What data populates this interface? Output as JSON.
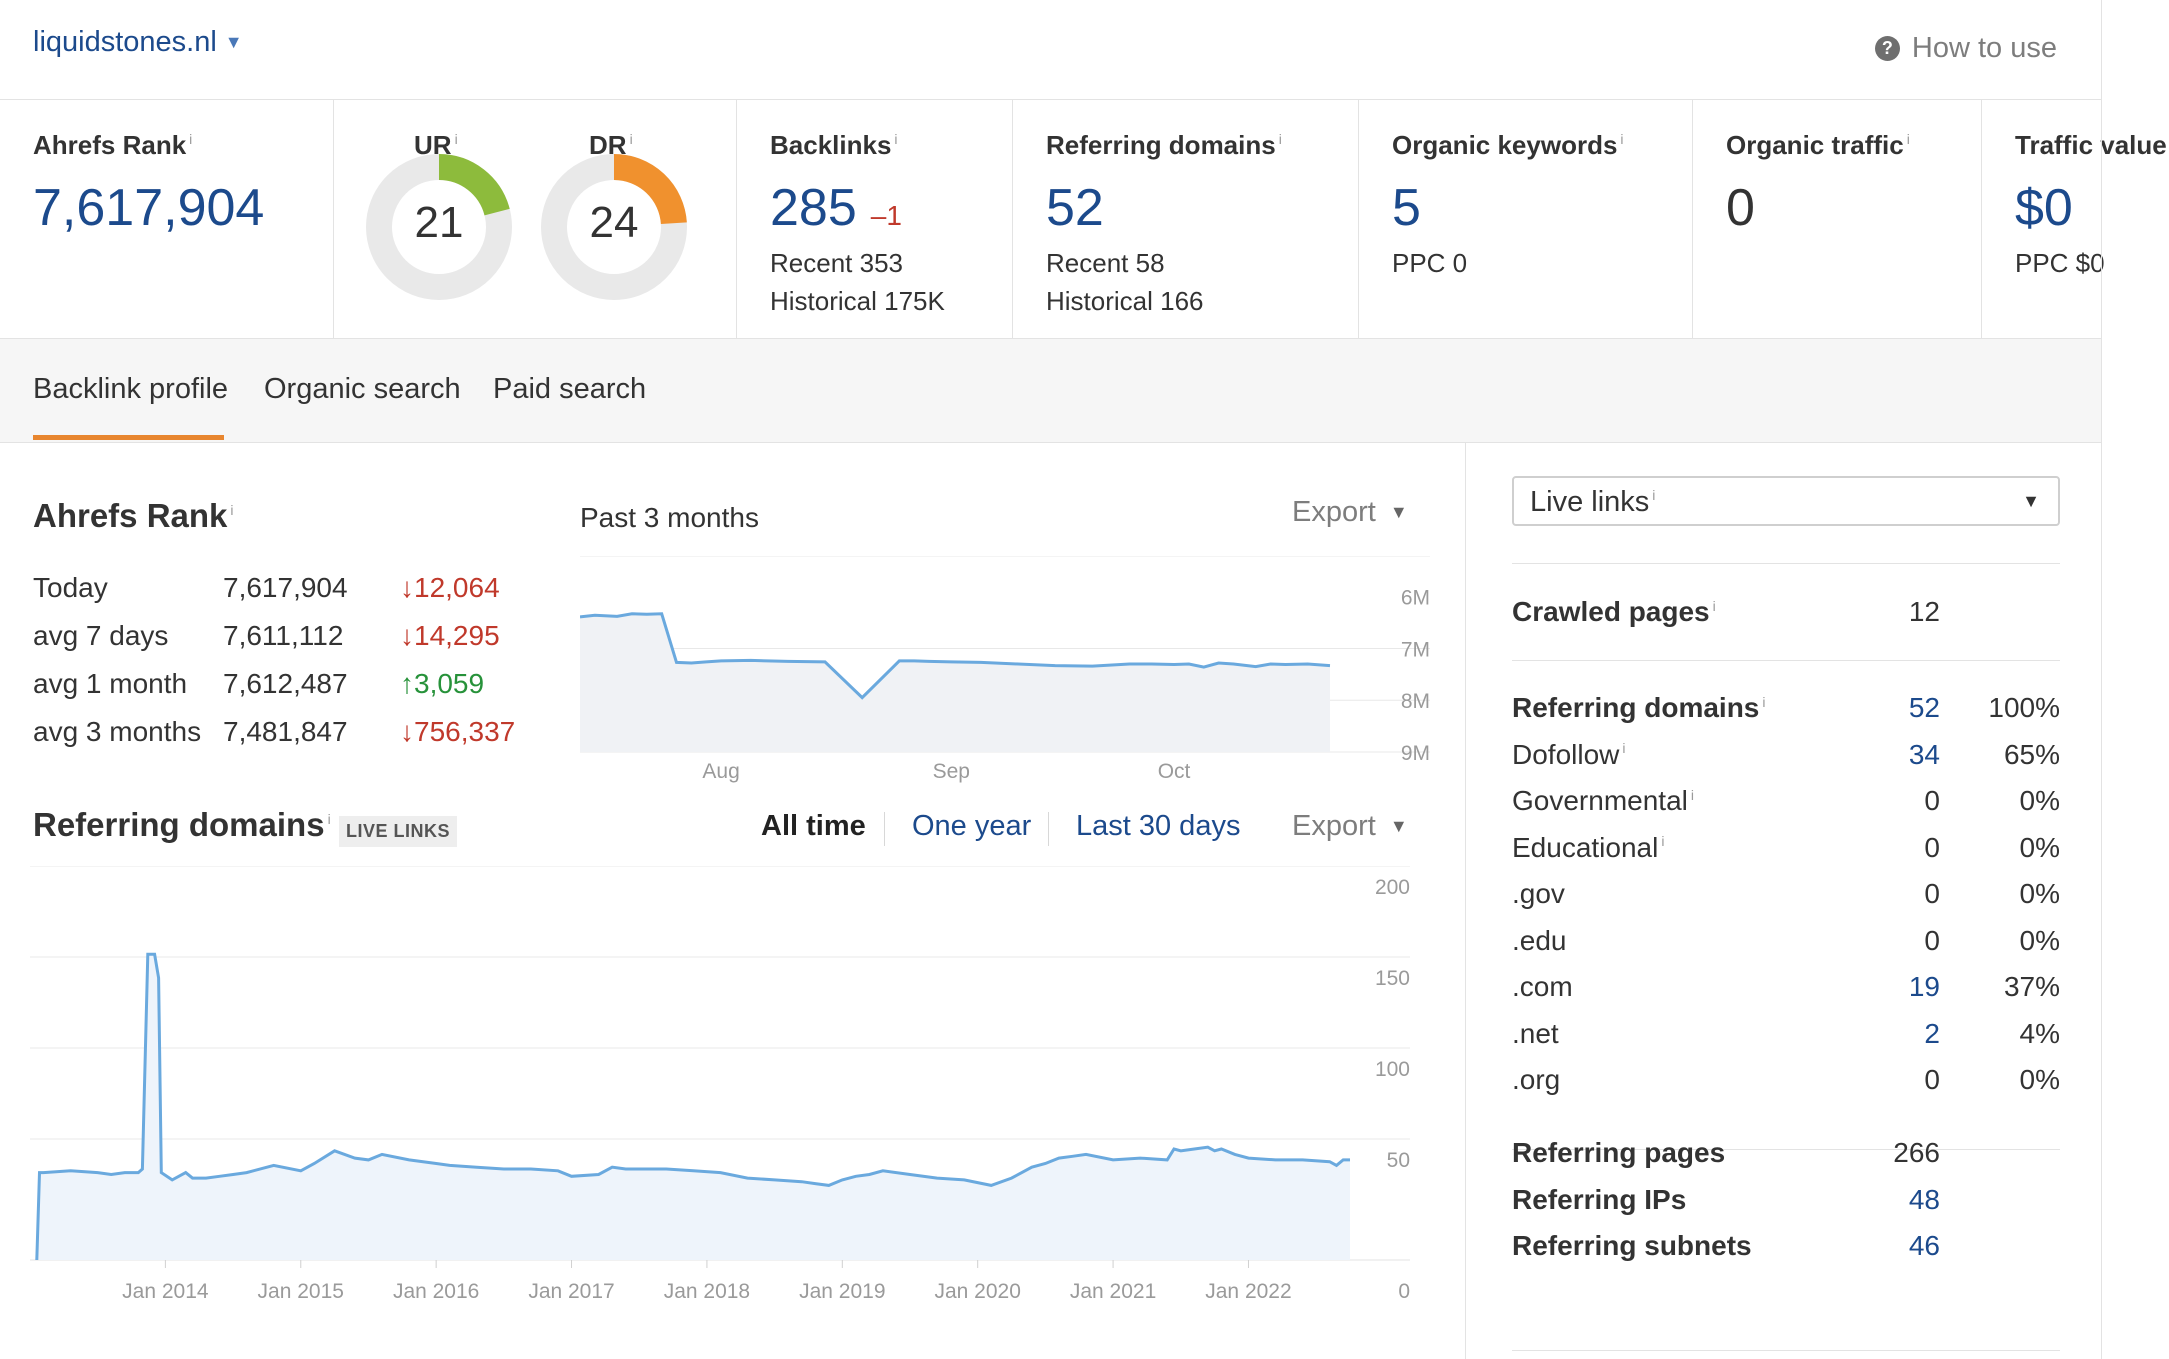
{
  "header": {
    "site": "liquidstones.nl",
    "how_to_use": "How to use",
    "help_glyph": "?"
  },
  "metrics": {
    "info_glyph": "i",
    "ahrefs_rank": {
      "label": "Ahrefs Rank",
      "value": "7,617,904"
    },
    "ur": {
      "label": "UR",
      "value": "21",
      "score": 21,
      "color": "#8dbb3c"
    },
    "dr": {
      "label": "DR",
      "value": "24",
      "score": 24,
      "color": "#f0912e"
    },
    "backlinks": {
      "label": "Backlinks",
      "value": "285",
      "delta": "–1",
      "recent": "Recent 353",
      "historical": "Historical 175K"
    },
    "referring_domains": {
      "label": "Referring domains",
      "value": "52",
      "recent": "Recent 58",
      "historical": "Historical 166"
    },
    "organic_keywords": {
      "label": "Organic keywords",
      "value": "5",
      "ppc": "PPC 0"
    },
    "organic_traffic": {
      "label": "Organic traffic",
      "value": "0"
    },
    "traffic_value": {
      "label": "Traffic value",
      "value": "$0",
      "ppc": "PPC $0"
    }
  },
  "tabs": [
    {
      "label": "Backlink profile",
      "active": true
    },
    {
      "label": "Organic search",
      "active": false
    },
    {
      "label": "Paid search",
      "active": false
    }
  ],
  "rank_section": {
    "title": "Ahrefs Rank",
    "period": "Past 3 months",
    "export": "Export",
    "rows": [
      {
        "label": "Today",
        "value": "7,617,904",
        "change": "12,064",
        "direction": "down"
      },
      {
        "label": "avg 7 days",
        "value": "7,611,112",
        "change": "14,295",
        "direction": "down"
      },
      {
        "label": "avg 1 month",
        "value": "7,612,487",
        "change": "3,059",
        "direction": "up"
      },
      {
        "label": "avg 3 months",
        "value": "7,481,847",
        "change": "756,337",
        "direction": "down"
      }
    ]
  },
  "rd_section": {
    "title": "Referring domains",
    "badge": "LIVE LINKS",
    "ranges": [
      {
        "label": "All time",
        "active": true
      },
      {
        "label": "One year",
        "active": false
      },
      {
        "label": "Last 30 days",
        "active": false
      }
    ],
    "export": "Export"
  },
  "right_panel": {
    "select_label": "Live links",
    "crawled": {
      "label": "Crawled pages",
      "value": "12"
    },
    "referring_domains_table": [
      {
        "label": "Referring domains",
        "value": "52",
        "pct": "100%",
        "bold": true,
        "info": true,
        "link": true
      },
      {
        "label": "Dofollow",
        "value": "34",
        "pct": "65%",
        "bold": false,
        "info": true,
        "link": true
      },
      {
        "label": "Governmental",
        "value": "0",
        "pct": "0%",
        "bold": false,
        "info": true,
        "link": false
      },
      {
        "label": "Educational",
        "value": "0",
        "pct": "0%",
        "bold": false,
        "info": true,
        "link": false
      },
      {
        "label": ".gov",
        "value": "0",
        "pct": "0%",
        "bold": false,
        "info": false,
        "link": false
      },
      {
        "label": ".edu",
        "value": "0",
        "pct": "0%",
        "bold": false,
        "info": false,
        "link": false
      },
      {
        "label": ".com",
        "value": "19",
        "pct": "37%",
        "bold": false,
        "info": false,
        "link": true
      },
      {
        "label": ".net",
        "value": "2",
        "pct": "4%",
        "bold": false,
        "info": false,
        "link": true
      },
      {
        "label": ".org",
        "value": "0",
        "pct": "0%",
        "bold": false,
        "info": false,
        "link": false
      }
    ],
    "bottom": [
      {
        "label": "Referring pages",
        "value": "266",
        "link": false
      },
      {
        "label": "Referring IPs",
        "value": "48",
        "link": true
      },
      {
        "label": "Referring subnets",
        "value": "46",
        "link": true
      }
    ]
  },
  "chart_data": [
    {
      "type": "area",
      "x_ticks": [
        "Aug",
        "Sep",
        "Oct"
      ],
      "y_ticks": [
        "6M",
        "7M",
        "8M",
        "9M"
      ],
      "ylim": [
        9000000,
        5600000
      ],
      "y_inverted": true,
      "grid": true,
      "x": [
        "2022-07-13",
        "2022-07-15",
        "2022-07-18",
        "2022-07-20",
        "2022-07-22",
        "2022-07-24",
        "2022-07-26",
        "2022-07-28",
        "2022-07-30",
        "2022-08-01",
        "2022-08-05",
        "2022-08-10",
        "2022-08-15",
        "2022-08-20",
        "2022-08-25",
        "2022-08-27",
        "2022-08-29",
        "2022-09-01",
        "2022-09-05",
        "2022-09-10",
        "2022-09-15",
        "2022-09-20",
        "2022-09-25",
        "2022-09-28",
        "2022-10-01",
        "2022-10-03",
        "2022-10-05",
        "2022-10-07",
        "2022-10-09",
        "2022-10-12",
        "2022-10-14",
        "2022-10-16",
        "2022-10-19",
        "2022-10-22"
      ],
      "values": [
        6390000,
        6360000,
        6380000,
        6330000,
        6340000,
        6330000,
        7270000,
        7280000,
        7260000,
        7240000,
        7230000,
        7250000,
        7260000,
        7950000,
        7240000,
        7240000,
        7250000,
        7260000,
        7270000,
        7300000,
        7330000,
        7340000,
        7300000,
        7300000,
        7310000,
        7300000,
        7360000,
        7280000,
        7300000,
        7350000,
        7300000,
        7310000,
        7300000,
        7330000
      ]
    },
    {
      "type": "area",
      "x_ticks": [
        "Jan 2014",
        "Jan 2015",
        "Jan 2016",
        "Jan 2017",
        "Jan 2018",
        "Jan 2019",
        "Jan 2020",
        "Jan 2021",
        "Jan 2022"
      ],
      "y_ticks": [
        "200",
        "150",
        "100",
        "50",
        "0"
      ],
      "ylim": [
        0,
        200
      ],
      "grid": true,
      "x": [
        2013.05,
        2013.07,
        2013.1,
        2013.3,
        2013.5,
        2013.6,
        2013.7,
        2013.75,
        2013.8,
        2013.83,
        2013.87,
        2013.92,
        2013.95,
        2013.97,
        2014.05,
        2014.15,
        2014.2,
        2014.3,
        2014.4,
        2014.5,
        2014.6,
        2014.8,
        2015.0,
        2015.1,
        2015.25,
        2015.4,
        2015.5,
        2015.6,
        2015.8,
        2016.0,
        2016.1,
        2016.3,
        2016.5,
        2016.7,
        2016.9,
        2017.0,
        2017.2,
        2017.3,
        2017.4,
        2017.5,
        2017.7,
        2017.9,
        2018.1,
        2018.3,
        2018.5,
        2018.7,
        2018.8,
        2018.9,
        2019.0,
        2019.1,
        2019.2,
        2019.3,
        2019.5,
        2019.7,
        2019.9,
        2020.1,
        2020.25,
        2020.4,
        2020.5,
        2020.6,
        2020.7,
        2020.8,
        2021.0,
        2021.2,
        2021.4,
        2021.45,
        2021.5,
        2021.6,
        2021.7,
        2021.75,
        2021.8,
        2021.9,
        2022.0,
        2022.2,
        2022.4,
        2022.6,
        2022.65,
        2022.7,
        2022.75
      ],
      "values": [
        0,
        48,
        48,
        49,
        48,
        47,
        48,
        48,
        48,
        50,
        168,
        168,
        155,
        48,
        44,
        48,
        45,
        45,
        46,
        47,
        48,
        52,
        49,
        53,
        60,
        56,
        55,
        58,
        55,
        53,
        52,
        51,
        50,
        50,
        49,
        46,
        47,
        51,
        50,
        50,
        50,
        49,
        48,
        45,
        44,
        43,
        42,
        41,
        44,
        46,
        47,
        49,
        47,
        45,
        44,
        41,
        45,
        51,
        53,
        56,
        57,
        58,
        55,
        56,
        55,
        61,
        60,
        61,
        62,
        60,
        61,
        58,
        56,
        55,
        55,
        54,
        52,
        55,
        55
      ]
    }
  ]
}
